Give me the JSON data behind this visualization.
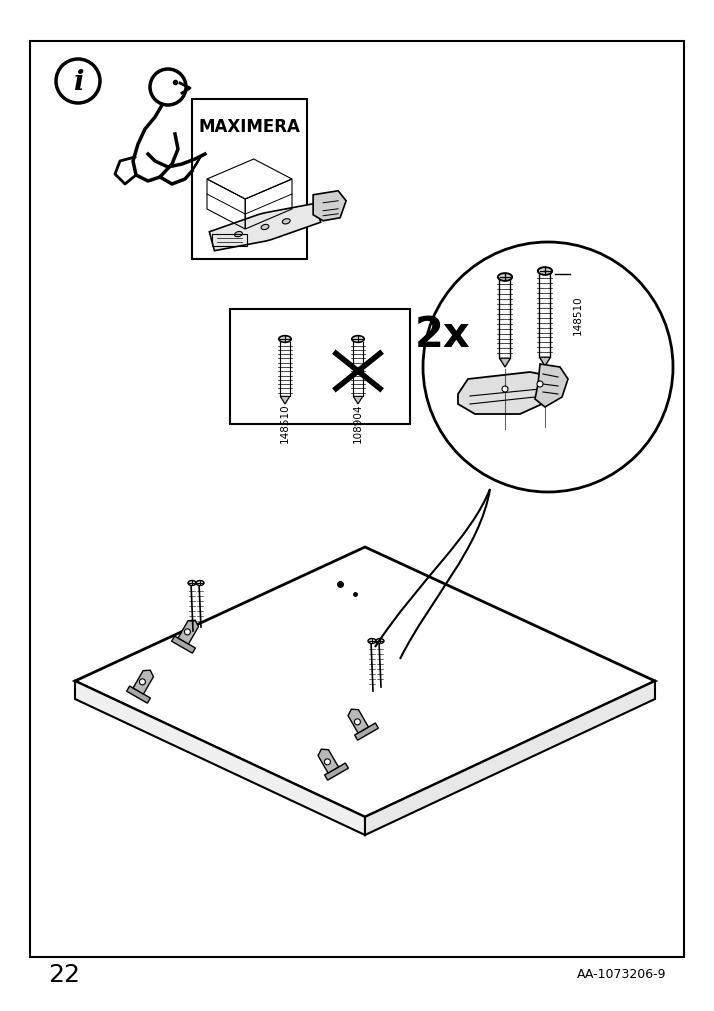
{
  "page_number": "22",
  "article_number": "AA-1073206-9",
  "background_color": "#ffffff",
  "border_color": "#000000",
  "text_color": "#000000",
  "screw_correct_id": "148510",
  "screw_wrong_id": "108904",
  "quantity_label": "2x",
  "title": "MAXIMERA",
  "fig_width": 7.14,
  "fig_height": 10.12,
  "dpi": 100
}
